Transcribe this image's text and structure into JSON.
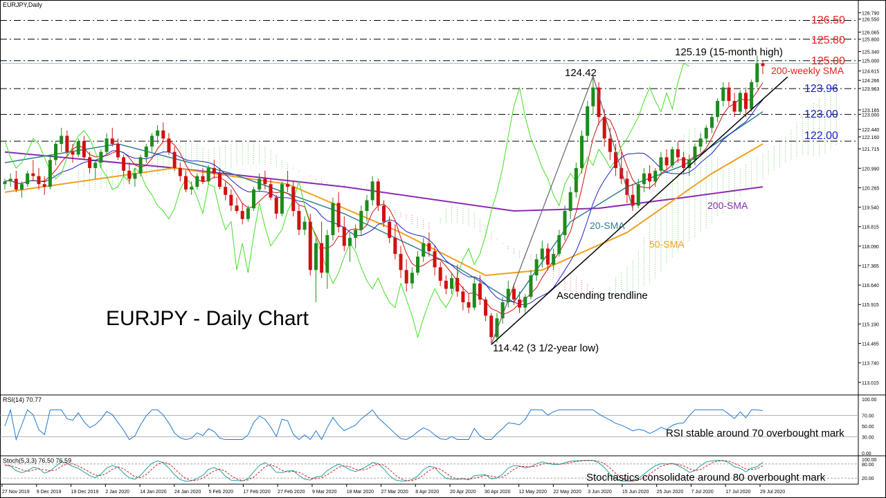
{
  "header": {
    "symbol": "EURJPY,Daily"
  },
  "chart_data": {
    "type": "candlestick",
    "title": "EURJPY - Daily Chart",
    "x_tick_labels": [
      "27 Nov 2019",
      "9 Dec 2019",
      "19 Dec 2019",
      "2 Jan 2020",
      "14 Jan 2020",
      "24 Jan 2020",
      "5 Feb 2020",
      "17 Feb 2020",
      "27 Feb 2020",
      "9 Mar 2020",
      "18 Mar 2020",
      "27 Mar 2020",
      "8 Apr 2020",
      "20 Apr 2020",
      "30 Apr 2020",
      "12 May 2020",
      "22 May 2020",
      "3 Jun 2020",
      "15 Jun 2020",
      "25 Jun 2020",
      "7 Jul 2020",
      "17 Jul 2020",
      "29 Jul 2020"
    ],
    "price_axis": {
      "labels": [
        "126.790",
        "126.550",
        "126.065",
        "125.800",
        "125.340",
        "125.000",
        "124.615",
        "124.266",
        "123.963",
        "123.165",
        "123.000",
        "122.440",
        "122.160",
        "121.715",
        "120.990",
        "120.265",
        "119.540",
        "118.815",
        "118.090",
        "117.365",
        "116.640",
        "115.915",
        "115.190",
        "114.465",
        "113.740",
        "113.015"
      ],
      "range": [
        112.7,
        126.9
      ]
    },
    "candles_ohlc": [
      [
        120.4,
        120.6,
        120.2,
        120.5
      ],
      [
        120.5,
        120.8,
        120.3,
        120.6
      ],
      [
        120.6,
        120.9,
        120.1,
        120.2
      ],
      [
        120.2,
        120.5,
        119.9,
        120.4
      ],
      [
        120.4,
        120.9,
        120.3,
        120.8
      ],
      [
        120.8,
        121.3,
        120.5,
        120.7
      ],
      [
        120.7,
        121.0,
        120.2,
        120.4
      ],
      [
        120.4,
        120.7,
        120.0,
        120.3
      ],
      [
        120.3,
        121.5,
        120.2,
        121.3
      ],
      [
        121.3,
        122.0,
        121.1,
        121.9
      ],
      [
        121.9,
        122.5,
        121.6,
        122.2
      ],
      [
        122.2,
        122.4,
        121.5,
        121.6
      ],
      [
        121.6,
        121.9,
        121.2,
        121.5
      ],
      [
        121.5,
        122.1,
        121.4,
        122.0
      ],
      [
        122.0,
        122.2,
        121.3,
        121.4
      ],
      [
        121.4,
        121.6,
        120.8,
        121.0
      ],
      [
        121.0,
        121.3,
        120.6,
        121.2
      ],
      [
        121.2,
        121.7,
        121.0,
        121.6
      ],
      [
        121.6,
        122.3,
        121.5,
        122.1
      ],
      [
        122.1,
        122.5,
        121.8,
        121.9
      ],
      [
        121.9,
        122.1,
        121.3,
        121.4
      ],
      [
        121.4,
        121.5,
        120.7,
        120.9
      ],
      [
        120.9,
        121.2,
        120.4,
        120.6
      ],
      [
        120.6,
        121.0,
        120.3,
        120.8
      ],
      [
        120.8,
        121.5,
        120.7,
        121.4
      ],
      [
        121.4,
        121.9,
        121.2,
        121.8
      ],
      [
        121.8,
        122.3,
        121.6,
        122.2
      ],
      [
        122.2,
        122.6,
        121.9,
        122.4
      ],
      [
        122.4,
        122.7,
        122.0,
        122.1
      ],
      [
        122.1,
        122.3,
        121.5,
        121.6
      ],
      [
        121.6,
        121.8,
        120.9,
        121.0
      ],
      [
        121.0,
        121.2,
        120.5,
        120.7
      ],
      [
        120.7,
        120.9,
        120.1,
        120.2
      ],
      [
        120.2,
        120.5,
        120.0,
        120.3
      ],
      [
        120.3,
        120.8,
        120.2,
        120.7
      ],
      [
        120.7,
        121.0,
        120.4,
        120.5
      ],
      [
        120.5,
        121.1,
        120.4,
        121.0
      ],
      [
        121.0,
        121.3,
        120.6,
        120.8
      ],
      [
        120.8,
        121.0,
        120.2,
        120.3
      ],
      [
        120.3,
        120.5,
        119.8,
        120.0
      ],
      [
        120.0,
        120.2,
        119.4,
        119.6
      ],
      [
        119.6,
        119.9,
        119.3,
        119.4
      ],
      [
        119.4,
        119.7,
        118.9,
        119.1
      ],
      [
        119.1,
        119.6,
        119.0,
        119.5
      ],
      [
        119.5,
        120.3,
        119.4,
        120.2
      ],
      [
        120.2,
        120.8,
        120.1,
        120.6
      ],
      [
        120.6,
        120.9,
        120.2,
        120.4
      ],
      [
        120.4,
        120.6,
        119.8,
        119.9
      ],
      [
        119.9,
        120.0,
        119.1,
        119.3
      ],
      [
        119.3,
        120.5,
        119.2,
        120.4
      ],
      [
        120.4,
        120.9,
        120.1,
        120.3
      ],
      [
        120.3,
        120.5,
        119.2,
        119.4
      ],
      [
        119.4,
        119.6,
        118.5,
        118.7
      ],
      [
        118.7,
        119.2,
        118.5,
        119.0
      ],
      [
        119.0,
        119.3,
        117.0,
        117.2
      ],
      [
        117.2,
        118.4,
        116.0,
        118.2
      ],
      [
        118.2,
        119.0,
        116.9,
        117.1
      ],
      [
        117.1,
        118.7,
        116.5,
        118.5
      ],
      [
        118.5,
        119.9,
        118.3,
        119.7
      ],
      [
        119.7,
        120.1,
        118.6,
        118.8
      ],
      [
        118.8,
        119.2,
        117.9,
        118.1
      ],
      [
        118.1,
        118.6,
        117.5,
        118.4
      ],
      [
        118.4,
        118.9,
        118.0,
        118.7
      ],
      [
        118.7,
        119.6,
        118.5,
        119.4
      ],
      [
        119.4,
        120.0,
        119.0,
        119.8
      ],
      [
        119.8,
        120.7,
        119.6,
        120.5
      ],
      [
        120.5,
        120.6,
        119.4,
        119.6
      ],
      [
        119.6,
        119.8,
        118.8,
        119.0
      ],
      [
        119.0,
        119.2,
        118.2,
        118.4
      ],
      [
        118.4,
        118.9,
        117.6,
        117.8
      ],
      [
        117.8,
        118.1,
        116.9,
        117.2
      ],
      [
        117.2,
        117.6,
        116.4,
        116.7
      ],
      [
        116.7,
        117.3,
        116.5,
        117.1
      ],
      [
        117.1,
        117.9,
        117.0,
        117.7
      ],
      [
        117.7,
        118.4,
        117.5,
        118.2
      ],
      [
        118.2,
        118.6,
        117.7,
        117.9
      ],
      [
        117.9,
        118.1,
        117.0,
        117.3
      ],
      [
        117.3,
        117.5,
        116.6,
        116.8
      ],
      [
        116.8,
        117.0,
        116.3,
        116.5
      ],
      [
        116.5,
        117.1,
        116.3,
        116.9
      ],
      [
        116.9,
        117.4,
        116.2,
        116.4
      ],
      [
        116.4,
        116.6,
        115.7,
        116.0
      ],
      [
        116.0,
        116.3,
        115.6,
        115.8
      ],
      [
        115.8,
        116.9,
        115.7,
        116.7
      ],
      [
        116.7,
        117.0,
        115.9,
        116.1
      ],
      [
        116.1,
        116.2,
        115.3,
        115.5
      ],
      [
        115.5,
        115.6,
        114.42,
        114.7
      ],
      [
        114.7,
        115.6,
        114.5,
        115.4
      ],
      [
        115.4,
        116.2,
        115.2,
        116.0
      ],
      [
        116.0,
        116.8,
        115.8,
        116.5
      ],
      [
        116.5,
        116.7,
        115.9,
        116.1
      ],
      [
        116.1,
        116.4,
        115.6,
        115.8
      ],
      [
        115.8,
        116.3,
        115.6,
        116.2
      ],
      [
        116.2,
        117.2,
        116.1,
        117.0
      ],
      [
        117.0,
        117.8,
        116.8,
        117.6
      ],
      [
        117.6,
        118.3,
        117.3,
        118.0
      ],
      [
        118.0,
        118.2,
        117.2,
        117.4
      ],
      [
        117.4,
        118.0,
        117.2,
        117.8
      ],
      [
        117.8,
        118.7,
        117.7,
        118.5
      ],
      [
        118.5,
        119.6,
        118.3,
        119.4
      ],
      [
        119.4,
        120.3,
        119.1,
        120.1
      ],
      [
        120.1,
        121.2,
        119.9,
        121.0
      ],
      [
        121.0,
        122.4,
        120.8,
        122.2
      ],
      [
        122.2,
        123.5,
        122.0,
        123.3
      ],
      [
        123.3,
        124.42,
        123.0,
        124.0
      ],
      [
        124.0,
        124.2,
        122.6,
        122.9
      ],
      [
        122.9,
        123.2,
        121.8,
        122.1
      ],
      [
        122.1,
        122.5,
        121.3,
        121.6
      ],
      [
        121.6,
        121.9,
        120.7,
        121.0
      ],
      [
        121.0,
        121.6,
        120.4,
        120.6
      ],
      [
        120.6,
        120.9,
        119.7,
        120.0
      ],
      [
        120.0,
        120.4,
        119.4,
        119.6
      ],
      [
        119.6,
        120.6,
        119.5,
        120.4
      ],
      [
        120.4,
        121.0,
        120.1,
        120.8
      ],
      [
        120.8,
        121.1,
        120.2,
        120.5
      ],
      [
        120.5,
        121.0,
        120.3,
        120.9
      ],
      [
        120.9,
        121.6,
        120.7,
        121.4
      ],
      [
        121.4,
        121.7,
        120.9,
        121.1
      ],
      [
        121.1,
        121.8,
        121.0,
        121.7
      ],
      [
        121.7,
        122.0,
        121.2,
        121.4
      ],
      [
        121.4,
        121.6,
        120.8,
        121.0
      ],
      [
        121.0,
        121.5,
        120.7,
        121.3
      ],
      [
        121.3,
        121.9,
        121.1,
        121.8
      ],
      [
        121.8,
        122.3,
        121.6,
        122.1
      ],
      [
        122.1,
        122.6,
        121.9,
        122.5
      ],
      [
        122.5,
        123.0,
        122.3,
        122.9
      ],
      [
        122.9,
        123.6,
        122.7,
        123.5
      ],
      [
        123.5,
        124.2,
        123.3,
        124.0
      ],
      [
        124.0,
        124.2,
        123.3,
        123.5
      ],
      [
        123.5,
        123.8,
        122.9,
        123.1
      ],
      [
        123.1,
        123.9,
        123.0,
        123.8
      ],
      [
        123.8,
        124.0,
        122.9,
        123.2
      ],
      [
        123.2,
        124.3,
        123.1,
        124.2
      ],
      [
        124.2,
        125.19,
        124.0,
        124.9
      ],
      [
        124.9,
        125.0,
        124.5,
        124.8
      ]
    ],
    "series": [
      {
        "name": "20-SMA",
        "color": "#2f7f8f"
      },
      {
        "name": "50-SMA",
        "color": "#f0a020"
      },
      {
        "name": "200-SMA",
        "color": "#8a2ab0"
      }
    ],
    "sma_20": [
      [
        0,
        121.2
      ],
      [
        20,
        121.9
      ],
      [
        40,
        120.8
      ],
      [
        60,
        119.3
      ],
      [
        80,
        117.3
      ],
      [
        90,
        116.0
      ],
      [
        100,
        119.0
      ],
      [
        110,
        120.3
      ],
      [
        120,
        121.1
      ],
      [
        134,
        123.1
      ]
    ],
    "sma_50": [
      [
        0,
        120.1
      ],
      [
        30,
        121.0
      ],
      [
        50,
        120.4
      ],
      [
        70,
        118.6
      ],
      [
        85,
        117.0
      ],
      [
        95,
        117.2
      ],
      [
        110,
        118.6
      ],
      [
        125,
        120.8
      ],
      [
        134,
        121.9
      ]
    ],
    "sma_200": [
      [
        0,
        121.6
      ],
      [
        30,
        121.0
      ],
      [
        60,
        120.3
      ],
      [
        90,
        119.4
      ],
      [
        105,
        119.5
      ],
      [
        120,
        119.9
      ],
      [
        134,
        120.3
      ]
    ],
    "horizontal_levels": [
      {
        "value": 126.5,
        "label": "126.50",
        "color": "#e8201c"
      },
      {
        "value": 125.8,
        "label": "125.80",
        "color": "#e8201c"
      },
      {
        "value": 125.0,
        "label": "125.00",
        "color": "#e8201c"
      },
      {
        "value": 124.9,
        "label": "200-weekly SMA",
        "color": "#e8201c"
      },
      {
        "value": 123.96,
        "label": "123.96",
        "color": "#1c20c8"
      },
      {
        "value": 123.0,
        "label": "123.00",
        "color": "#1c20c8"
      },
      {
        "value": 122.0,
        "label": "122.00",
        "color": "#1c20c8"
      }
    ],
    "annotations": {
      "high": "125.19 (15-month high)",
      "peak": "124.42",
      "low": "114.42 (3 1/2-year low)",
      "trendline": "Ascending trendline",
      "sma20": "20-SMA",
      "sma50": "50-SMA",
      "sma200": "200-SMA"
    },
    "rsi": {
      "header": "RSI(14) 70.77",
      "labels": [
        "100.00",
        "70.00",
        "50.00",
        "30.00",
        "0.00"
      ],
      "levels": [
        70,
        30
      ],
      "note": "RSI stable around 70 overbought mark"
    },
    "stoch": {
      "header": "Stoch(5,3,3) 76.50 76.59",
      "labels": [
        "100.00",
        "80.00",
        "20.00"
      ],
      "levels": [
        80,
        20
      ],
      "note": "Stochastics consolidate around 80 overbought mark"
    }
  }
}
